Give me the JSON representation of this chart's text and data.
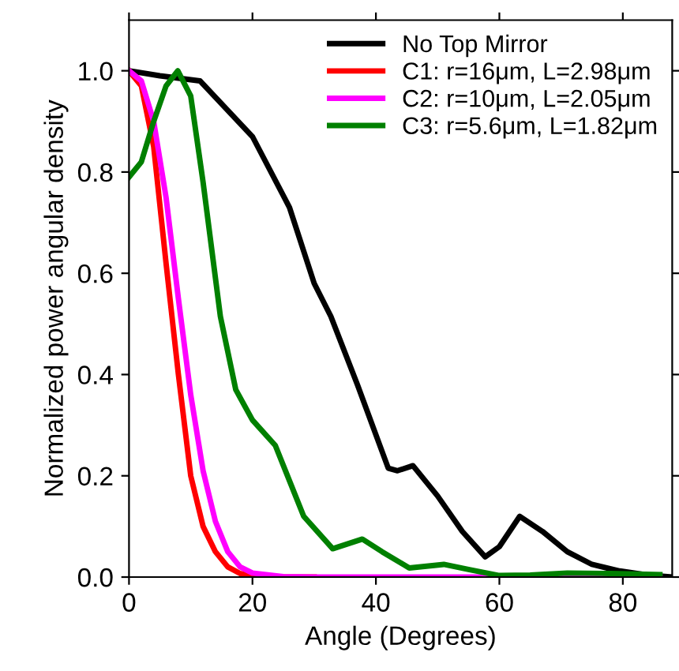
{
  "chart_data": {
    "type": "line",
    "xlabel": "Angle (Degrees)",
    "ylabel": "Normalized power angular density",
    "xlim": [
      0,
      88
    ],
    "ylim": [
      0,
      1.1
    ],
    "xticks": [
      0,
      20,
      40,
      60,
      80
    ],
    "yticks": [
      {
        "value": 0,
        "label": "0.0"
      },
      0.2,
      0.4,
      0.6,
      0.8,
      {
        "value": 1,
        "label": "1.0"
      }
    ],
    "grid": false,
    "legend": "top right",
    "marker": "none",
    "line_style": "solid",
    "series": [
      {
        "name": "No Top Mirror",
        "color": "#000000",
        "x": [
          0,
          5,
          11.5,
          20,
          26,
          30,
          32.7,
          37,
          42,
          43.5,
          46,
          50,
          54,
          57.7,
          60,
          63.3,
          67,
          71,
          75,
          79.5,
          84,
          88
        ],
        "values": [
          1.0,
          0.99,
          0.98,
          0.87,
          0.73,
          0.58,
          0.515,
          0.38,
          0.215,
          0.21,
          0.22,
          0.16,
          0.09,
          0.04,
          0.06,
          0.12,
          0.09,
          0.05,
          0.025,
          0.012,
          0.004,
          0.0
        ]
      },
      {
        "name": "C1: r=16μm, L=2.98μm",
        "color": "#ff0000",
        "x": [
          0,
          2,
          4,
          6,
          8,
          10,
          12,
          14,
          16,
          18,
          20,
          25,
          30
        ],
        "values": [
          1.0,
          0.97,
          0.85,
          0.62,
          0.4,
          0.2,
          0.1,
          0.05,
          0.02,
          0.007,
          0.002,
          0.0,
          0.0
        ]
      },
      {
        "name": "C2: r=10μm, L=2.05μm",
        "color": "#ff00ff",
        "x": [
          0,
          2,
          4,
          6,
          8,
          10,
          12,
          14,
          16,
          18,
          20,
          25,
          30,
          40,
          60,
          86
        ],
        "values": [
          1.0,
          0.98,
          0.9,
          0.75,
          0.55,
          0.36,
          0.21,
          0.11,
          0.05,
          0.02,
          0.008,
          0.001,
          0.0,
          0.0,
          0.0,
          0.0
        ]
      },
      {
        "name": "C3: r=5.6μm, L=1.82μm",
        "color": "#008000",
        "x": [
          0,
          2,
          4,
          6,
          7.9,
          10,
          12,
          14.8,
          17.3,
          20,
          23.7,
          26,
          28.3,
          33,
          37.8,
          41,
          45.4,
          51,
          55,
          60,
          65,
          71,
          78,
          86
        ],
        "values": [
          0.79,
          0.82,
          0.9,
          0.97,
          1.0,
          0.95,
          0.78,
          0.515,
          0.37,
          0.31,
          0.26,
          0.19,
          0.12,
          0.056,
          0.075,
          0.05,
          0.018,
          0.025,
          0.015,
          0.003,
          0.004,
          0.008,
          0.007,
          0.005
        ]
      }
    ]
  }
}
